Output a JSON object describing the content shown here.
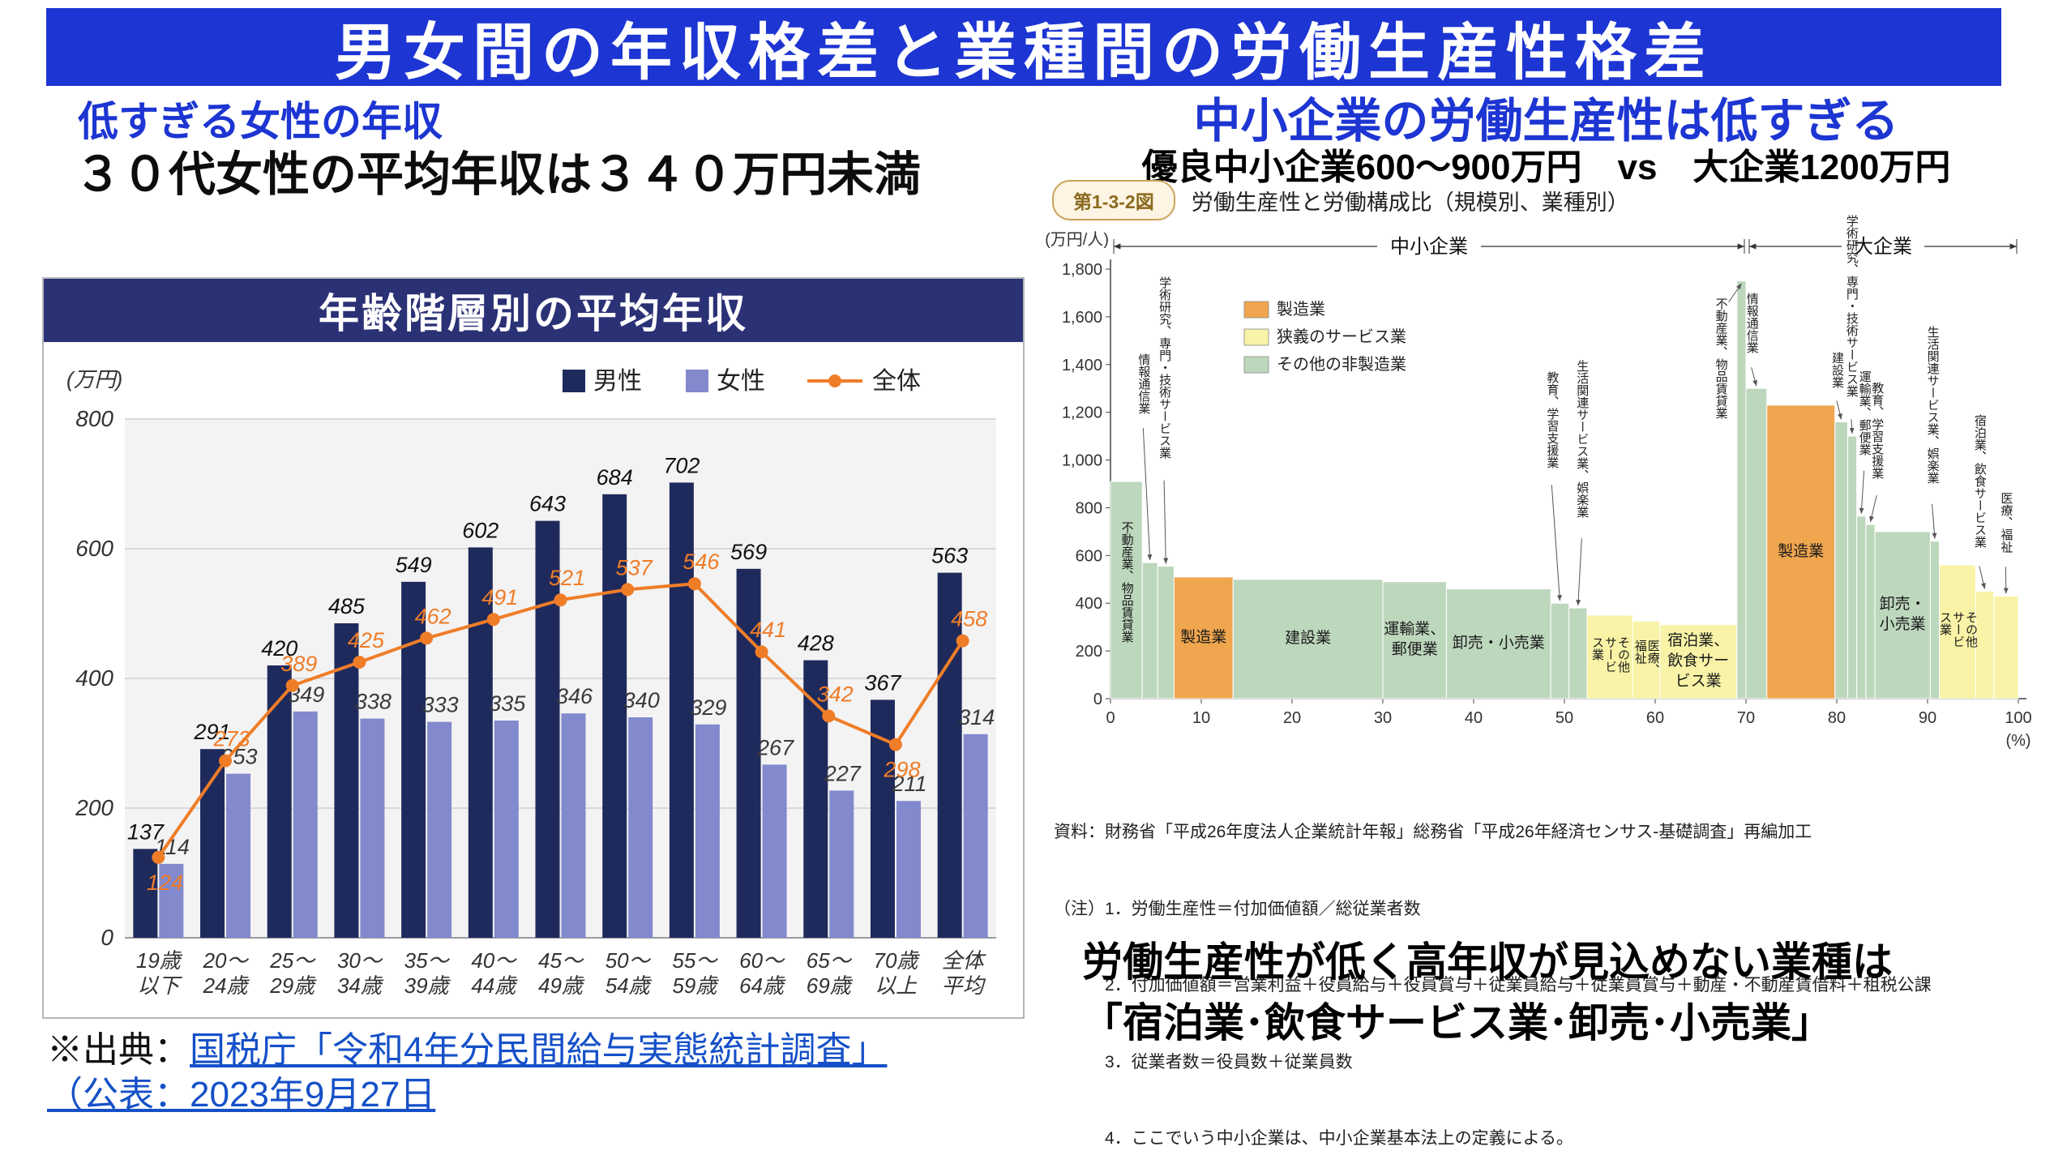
{
  "page": {
    "title": "男女間の年収格差と業種間の労働生産性格差"
  },
  "left": {
    "heading1": "低すぎる女性の年収",
    "heading2": "３０代女性の平均年収は３４０万円未満",
    "source_prefix": "※出典：",
    "source_link": "国税庁「令和4年分民間給与実態統計調査」",
    "source_link2": "（公表：2023年9月27日"
  },
  "right": {
    "heading1": "中小企業の労働生産性は低すぎる",
    "heading2": "優良中小企業600～900万円　vs　大企業1200万円",
    "message1": "労働生産性が低く高年収が見込めない業種は",
    "message2": "「宿泊業･飲食サービス業･卸売･小売業」"
  },
  "chart_data": [
    {
      "type": "bar",
      "title": "年齢階層別の平均年収",
      "unit_label": "(万円)",
      "ylim": [
        0,
        800
      ],
      "yticks": [
        0,
        200,
        400,
        600,
        800
      ],
      "categories": [
        "19歳\n以下",
        "20～\n24歳",
        "25～\n29歳",
        "30～\n34歳",
        "35～\n39歳",
        "40～\n44歳",
        "45～\n49歳",
        "50～\n54歳",
        "55～\n59歳",
        "60～\n64歳",
        "65～\n69歳",
        "70歳\n以上",
        "全体\n平均"
      ],
      "series": [
        {
          "name": "男性",
          "kind": "bar",
          "color": "#1f2a5c",
          "values": [
            137,
            291,
            420,
            485,
            549,
            602,
            643,
            684,
            702,
            569,
            428,
            367,
            563
          ]
        },
        {
          "name": "女性",
          "kind": "bar",
          "color": "#8289cc",
          "values": [
            114,
            253,
            349,
            338,
            333,
            335,
            346,
            340,
            329,
            267,
            227,
            211,
            314
          ]
        },
        {
          "name": "全体",
          "kind": "line",
          "color": "#ef7d28",
          "values": [
            124,
            273,
            389,
            425,
            462,
            491,
            521,
            537,
            546,
            441,
            342,
            298,
            458
          ],
          "label_pos": [
            "below",
            "above",
            "above",
            "above",
            "above",
            "above",
            "above",
            "above",
            "above",
            "above",
            "above",
            "below",
            "above"
          ]
        }
      ]
    },
    {
      "type": "marimekko",
      "fig_no": "第1-3-2図",
      "title": "労働生産性と労働構成比（規模別、業種別）",
      "y_unit": "(万円/人)",
      "x_unit": "(%)",
      "ylim": [
        0,
        1800
      ],
      "yticks": [
        0,
        200,
        400,
        600,
        800,
        1000,
        1200,
        1400,
        1600,
        1800
      ],
      "xticks": [
        0,
        10,
        20,
        30,
        40,
        50,
        60,
        70,
        80,
        90,
        100
      ],
      "regions": [
        {
          "label": "中小企業",
          "from": 0,
          "to": 70
        },
        {
          "label": "大企業",
          "from": 70,
          "to": 100
        }
      ],
      "legend": [
        {
          "label": "製造業",
          "color": "#f0a64e"
        },
        {
          "label": "狭義のサービス業",
          "color": "#f8f3a6"
        },
        {
          "label": "その他の非製造業",
          "color": "#bdd7bd"
        }
      ],
      "segments": [
        {
          "label": "不動産業、物品賃貸業",
          "x0": 0,
          "x1": 3.5,
          "value": 910,
          "cat": "other",
          "mode": "inside-v"
        },
        {
          "label": "情報通信業",
          "x0": 3.5,
          "x1": 5.2,
          "value": 570,
          "cat": "other",
          "mode": "arrow",
          "lx": 3.6,
          "gap": 170
        },
        {
          "label": "学術研究、専門・技術サービス業",
          "x0": 5.2,
          "x1": 7,
          "value": 555,
          "cat": "other",
          "mode": "arrow",
          "lx": 5.9,
          "gap": 110
        },
        {
          "label": "製造業",
          "x0": 7,
          "x1": 13.5,
          "value": 510,
          "cat": "mfg",
          "mode": "inside-h"
        },
        {
          "label": "建設業",
          "x0": 13.5,
          "x1": 30,
          "value": 500,
          "cat": "other",
          "mode": "inside-h"
        },
        {
          "label": "運輸業、郵便業",
          "x0": 30,
          "x1": 37,
          "value": 490,
          "cat": "other",
          "mode": "inside-h",
          "lines": [
            "運輸業、",
            "郵便業"
          ]
        },
        {
          "label": "卸売・小売業",
          "x0": 37,
          "x1": 48.5,
          "value": 460,
          "cat": "other",
          "mode": "inside-h"
        },
        {
          "label": "教育、学習支援業",
          "x0": 48.5,
          "x1": 50.5,
          "value": 400,
          "cat": "other",
          "mode": "arrow",
          "lx": 48.6,
          "gap": 150
        },
        {
          "label": "生活関連サービス業、娯楽業",
          "x0": 50.5,
          "x1": 52.5,
          "value": 380,
          "cat": "other",
          "mode": "arrow",
          "lx": 51.9,
          "gap": 90
        },
        {
          "label": "その他サービス業",
          "x0": 52.5,
          "x1": 57.5,
          "value": 350,
          "cat": "svc",
          "mode": "inside-v",
          "lines": [
            "その他",
            "サービ",
            "ス業"
          ]
        },
        {
          "label": "医療、福祉",
          "x0": 57.5,
          "x1": 60.5,
          "value": 325,
          "cat": "svc",
          "mode": "inside-v",
          "lines": [
            "医療、",
            "福祉"
          ]
        },
        {
          "label": "宿泊業、飲食サービス業",
          "x0": 60.5,
          "x1": 69,
          "value": 310,
          "cat": "svc",
          "mode": "inside-h",
          "lines": [
            "宿泊業、",
            "飲食サー",
            "ビス業"
          ]
        },
        {
          "label": "不動産業、物品賃貸業",
          "x0": 69,
          "x1": 70,
          "value": 1750,
          "cat": "other",
          "mode": "arrow-side",
          "lx": 67.2
        },
        {
          "label": "情報通信業",
          "x0": 70,
          "x1": 72.3,
          "value": 1300,
          "cat": "other",
          "mode": "arrow",
          "lx": 70.6,
          "gap": 30
        },
        {
          "label": "製造業",
          "x0": 72.3,
          "x1": 79.8,
          "value": 1230,
          "cat": "mfg",
          "mode": "inside-h"
        },
        {
          "label": "建設業",
          "x0": 79.8,
          "x1": 81.2,
          "value": 1160,
          "cat": "other",
          "mode": "arrow",
          "lx": 80.0,
          "gap": 30
        },
        {
          "label": "学術研究、専門・技術サービス業",
          "x0": 81.2,
          "x1": 82.2,
          "value": 1100,
          "cat": "other",
          "mode": "arrow",
          "lx": 81.6,
          "gap": 25
        },
        {
          "label": "運輸業、郵便業",
          "x0": 82.2,
          "x1": 83.2,
          "value": 765,
          "cat": "other",
          "mode": "arrow",
          "lx": 83.0,
          "gap": 60
        },
        {
          "label": "教育、学習支援業",
          "x0": 83.2,
          "x1": 84.2,
          "value": 730,
          "cat": "other",
          "mode": "arrow",
          "lx": 84.4,
          "gap": 40
        },
        {
          "label": "卸売・小売業",
          "x0": 84.2,
          "x1": 90.3,
          "value": 700,
          "cat": "other",
          "mode": "inside-h",
          "lines": [
            "卸売・",
            "小売業"
          ]
        },
        {
          "label": "生活関連サービス業、娯楽業",
          "x0": 90.3,
          "x1": 91.3,
          "value": 660,
          "cat": "other",
          "mode": "arrow",
          "lx": 90.5,
          "gap": 50
        },
        {
          "label": "その他サービス業",
          "x0": 91.3,
          "x1": 95.3,
          "value": 560,
          "cat": "svc",
          "mode": "inside-v",
          "lines": [
            "その他",
            "サービ",
            "ス業"
          ]
        },
        {
          "label": "宿泊業、飲食サービス業",
          "x0": 95.3,
          "x1": 97.3,
          "value": 450,
          "cat": "svc",
          "mode": "arrow",
          "lx": 95.7,
          "gap": 35
        },
        {
          "label": "医療、福祉",
          "x0": 97.3,
          "x1": 100,
          "value": 430,
          "cat": "svc",
          "mode": "arrow",
          "lx": 98.6,
          "gap": 40
        }
      ],
      "notes": [
        "資料：財務省「平成26年度法人企業統計年報」総務省「平成26年経済センサス-基礎調査」再編加工",
        "（注）1．労働生産性＝付加価値額／総従業者数",
        "　　　2．付加価値額＝営業利益＋役員給与＋役員賞与＋従業員給与＋従業員賞与＋動産・不動産賃借料＋租税公課",
        "　　　3．従業者数＝役員数＋従業員数",
        "　　　4．ここでいう中小企業は、中小企業基本法上の定義による。"
      ]
    }
  ]
}
